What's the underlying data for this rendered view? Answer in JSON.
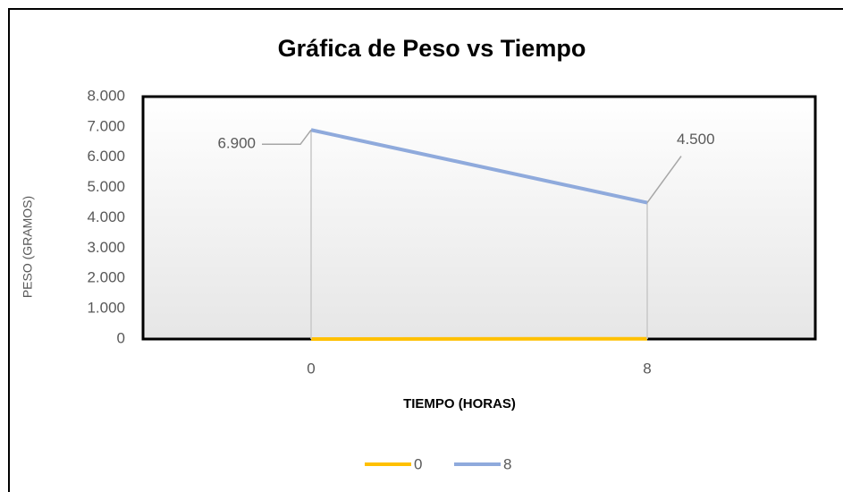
{
  "chart_data": {
    "type": "line",
    "title": "Gráfica de Peso vs Tiempo",
    "x_label": "TIEMPO (HORAS)",
    "y_label": "PESO (GRAMOS)",
    "categories": [
      "0",
      "8"
    ],
    "series": [
      {
        "name": "0",
        "color": "#ffc000",
        "values": [
          0,
          8
        ]
      },
      {
        "name": "8",
        "color": "#8faadc",
        "values": [
          6900,
          4500
        ],
        "value_labels": [
          "6.900",
          "4.500"
        ]
      }
    ],
    "ylim": [
      0,
      8000
    ],
    "yticks": [
      0,
      {
        "value": 1000,
        "label": "1.000"
      },
      {
        "value": 2000,
        "label": "2.000"
      },
      {
        "value": 3000,
        "label": "3.000"
      },
      {
        "value": 4000,
        "label": "4.000"
      },
      {
        "value": 5000,
        "label": "5.000"
      },
      {
        "value": 6000,
        "label": "6.000"
      },
      {
        "value": 7000,
        "label": "7.000"
      },
      {
        "value": 8000,
        "label": "8.000"
      }
    ],
    "grid": false,
    "legend": "bottom"
  }
}
